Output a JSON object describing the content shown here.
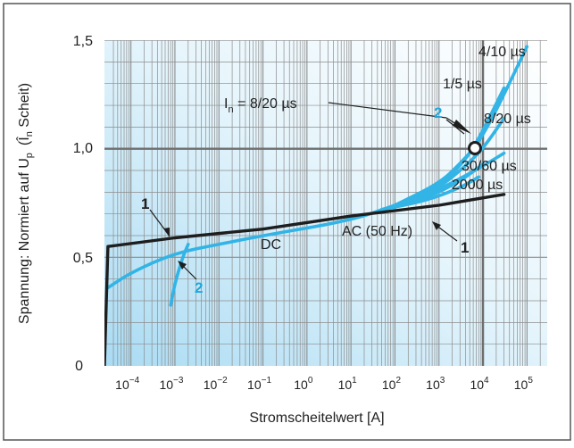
{
  "chart_data": {
    "type": "line",
    "title": "",
    "xlabel": "Stromscheitelwert [A]",
    "ylabel": "Spannung: Normiert auf U",
    "ylabel_sub": "p",
    "ylabel_paren": "(Î",
    "ylabel_paren_sub": "n",
    "ylabel_paren_end": " Scheit)",
    "x_scale": "log",
    "xlim_exponent": [
      -4.5,
      5.5
    ],
    "ylim": [
      0,
      1.5
    ],
    "x_ticks": [
      {
        "base": "10",
        "exp": "−4"
      },
      {
        "base": "10",
        "exp": "−3"
      },
      {
        "base": "10",
        "exp": "−2"
      },
      {
        "base": "10",
        "exp": "−1"
      },
      {
        "base": "10",
        "exp": "0"
      },
      {
        "base": "10",
        "exp": "1"
      },
      {
        "base": "10",
        "exp": "2"
      },
      {
        "base": "10",
        "exp": "3"
      },
      {
        "base": "10",
        "exp": "4"
      },
      {
        "base": "10",
        "exp": "5"
      }
    ],
    "y_ticks": [
      "0",
      "0,5",
      "1,0",
      "1,5"
    ],
    "grid": true,
    "reference_point": {
      "current_A": 10000,
      "normalized_voltage": 1.0
    },
    "colors": {
      "frame_border": "#555555",
      "plot_bg_dark": "#a9dbf3",
      "plot_bg_light": "#ffffff",
      "grid_minor": "#8c8c8c",
      "grid_major": "#6e6e6e",
      "curve_black": "#1e1e1e",
      "curve_cyan": "#32b4e6",
      "label_cyan": "#1fa9dd",
      "text": "#222222"
    },
    "series": [
      {
        "name": "1",
        "color": "#1e1e1e",
        "points": [
          [
            2.5e-05,
            0.0
          ],
          [
            3e-05,
            0.55
          ],
          [
            0.001,
            0.59
          ],
          [
            0.1,
            0.63
          ],
          [
            10,
            0.69
          ],
          [
            1000,
            0.74
          ],
          [
            30000,
            0.79
          ]
        ]
      },
      {
        "name": "2",
        "branch": "DC",
        "color": "#32b4e6",
        "points": [
          [
            3e-05,
            0.36
          ],
          [
            0.0001,
            0.43
          ],
          [
            0.001,
            0.52
          ],
          [
            0.01,
            0.56
          ],
          [
            0.1,
            0.6
          ],
          [
            10,
            0.67
          ],
          [
            100,
            0.74
          ],
          [
            1000,
            0.81
          ],
          [
            10000,
            0.92
          ],
          [
            30000,
            0.98
          ]
        ]
      },
      {
        "name": "2",
        "branch": "low-current",
        "color": "#32b4e6",
        "points": [
          [
            0.0008,
            0.28
          ],
          [
            0.001,
            0.38
          ],
          [
            0.0015,
            0.5
          ],
          [
            0.002,
            0.56
          ]
        ]
      },
      {
        "name": "4/10 µs",
        "color": "#32b4e6",
        "points": [
          [
            100,
            0.74
          ],
          [
            1000,
            0.84
          ],
          [
            3000,
            0.93
          ],
          [
            10000,
            1.05
          ],
          [
            100000,
            1.47
          ]
        ]
      },
      {
        "name": "1/5 µs",
        "color": "#32b4e6",
        "points": [
          [
            100,
            0.74
          ],
          [
            1000,
            0.83
          ],
          [
            3000,
            0.92
          ],
          [
            7000,
            1.02
          ],
          [
            30000,
            1.28
          ]
        ]
      },
      {
        "name": "8/20 µs",
        "color": "#32b4e6",
        "points": [
          [
            100,
            0.73
          ],
          [
            1000,
            0.82
          ],
          [
            4000,
            0.92
          ],
          [
            10000,
            1.0
          ],
          [
            30000,
            1.14
          ]
        ]
      },
      {
        "name": "30/60 µs",
        "color": "#32b4e6",
        "points": [
          [
            50,
            0.72
          ],
          [
            500,
            0.77
          ],
          [
            3000,
            0.85
          ],
          [
            10000,
            0.93
          ]
        ]
      },
      {
        "name": "2000 µs",
        "color": "#32b4e6",
        "points": [
          [
            50,
            0.72
          ],
          [
            500,
            0.76
          ],
          [
            3000,
            0.82
          ],
          [
            8000,
            0.87
          ]
        ]
      }
    ],
    "annotations": {
      "in_label": "I",
      "in_label_sub": "n",
      "in_label_rest": " = 8/20 µs",
      "ac_label": "AC (50 Hz)",
      "dc_label": "DC",
      "curve1_label": "1",
      "curve2_label": "2",
      "waveforms": [
        "4/10 µs",
        "1/5 µs",
        "8/20 µs",
        "30/60 µs",
        "2000 µs"
      ]
    }
  }
}
